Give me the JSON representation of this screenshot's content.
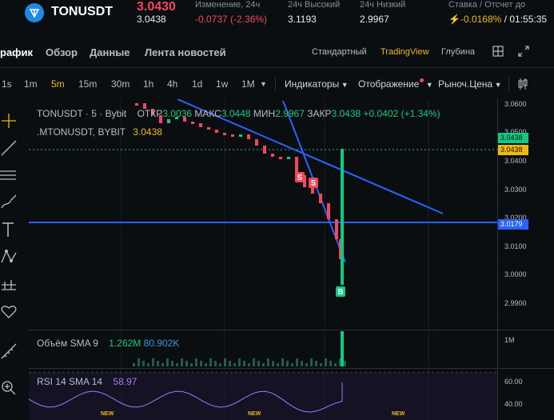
{
  "header": {
    "pair": "TONUSDT",
    "last_price": "3.0430",
    "mark_price": "3.0438",
    "stats": [
      {
        "label": "Изменение, 24ч",
        "value": "-0.0737 (-2.36%)"
      },
      {
        "label": "24ч Высокий",
        "value": "3.1193"
      },
      {
        "label": "24ч Низкий",
        "value": "2.9967"
      }
    ],
    "funding_label": "Ставка / Отсчет до",
    "funding_rate": "-0.0168%",
    "funding_countdown": "01:55:35",
    "colors": {
      "down": "#f6465d",
      "up": "#0ecb81",
      "accent": "#f0b90b"
    }
  },
  "tabs": [
    {
      "label": "рафик",
      "active": true
    },
    {
      "label": "Обзор",
      "active": false
    },
    {
      "label": "Данные",
      "active": false
    },
    {
      "label": "Лента новостей",
      "active": false
    }
  ],
  "view_modes": [
    {
      "label": "Стандартный",
      "active": false
    },
    {
      "label": "TradingView",
      "active": true
    },
    {
      "label": "Глубина",
      "active": false
    }
  ],
  "timeframes": [
    {
      "label": "1s",
      "active": false
    },
    {
      "label": "1m",
      "active": false
    },
    {
      "label": "5m",
      "active": true
    },
    {
      "label": "15m",
      "active": false
    },
    {
      "label": "30m",
      "active": false
    },
    {
      "label": "1h",
      "active": false
    },
    {
      "label": "4h",
      "active": false
    },
    {
      "label": "1d",
      "active": false
    },
    {
      "label": "1w",
      "active": false
    },
    {
      "label": "1M",
      "active": false
    }
  ],
  "toolbar": {
    "indicators": "Индикаторы",
    "display": "Отображение",
    "price_type": "Рыноч.Цена"
  },
  "chart": {
    "symbol": "TONUSDT · 5 · Bybit",
    "ohlc": {
      "open_label": "ОТКР",
      "open": "3.0036",
      "high_label": "МАКС",
      "high": "3.0448",
      "low_label": "МИН",
      "low": "2.9967",
      "close_label": "ЗАКР",
      "close": "3.0438",
      "change": "+0.0402 (+1.34%)"
    },
    "mark_symbol": ".MTONUSDT, BYBIT",
    "mark_value": "3.0438",
    "price_axis": [
      "3.0600",
      "3.0500",
      "3.0400",
      "3.0300",
      "3.0200",
      "3.0100",
      "3.0000",
      "2.9900"
    ],
    "price_tags": [
      {
        "value": "3.0438",
        "color": "#0ecb81"
      },
      {
        "value": "3.0438",
        "color": "#f0b90b"
      },
      {
        "value": "3.0179",
        "color": "#2962ff"
      }
    ],
    "signals": [
      "S",
      "S",
      "B"
    ],
    "volume": {
      "label": "Объём SMA 9",
      "v1": "1.262M",
      "v2": "80.902K",
      "axis": "1M"
    },
    "rsi": {
      "label": "RSI 14 SMA 14",
      "value": "58.97",
      "axis": [
        "60.00",
        "40.00"
      ]
    },
    "new_badges": [
      "NEW",
      "NEW",
      "NEW"
    ]
  }
}
